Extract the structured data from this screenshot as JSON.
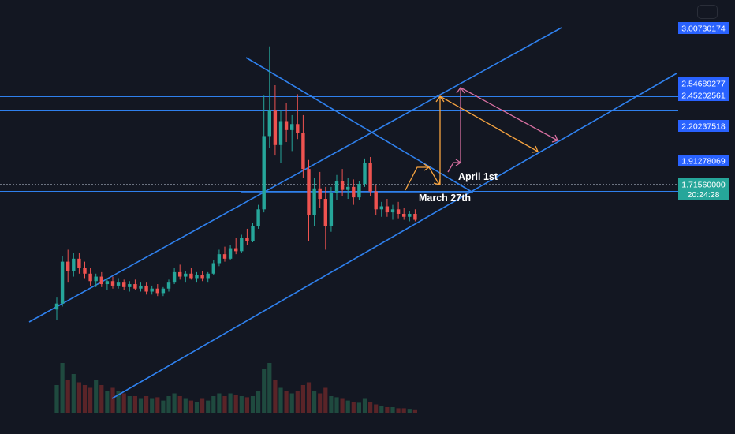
{
  "chart_data": {
    "type": "candlestick",
    "price_scale": {
      "min": 0.7,
      "max": 3.1
    },
    "x_range": [
      0,
      92
    ],
    "price_levels": [
      {
        "label": "3.00730174",
        "value": 3.00730174
      },
      {
        "label": "2.54689277",
        "value": 2.54689277
      },
      {
        "label": "2.45202561",
        "value": 2.45202561
      },
      {
        "label": "2.20237518",
        "value": 2.20237518
      },
      {
        "label": "1.91278069",
        "value": 1.91278069
      }
    ],
    "last_price": {
      "label": "1.71560000",
      "value": 1.7156,
      "countdown": "20:24:28"
    },
    "annotations": [
      {
        "text": "April 1st"
      },
      {
        "text": "March 27th"
      }
    ],
    "candles": [
      [
        1.12,
        1.2,
        1.05,
        1.16
      ],
      [
        1.16,
        1.48,
        1.14,
        1.44
      ],
      [
        1.44,
        1.52,
        1.3,
        1.38
      ],
      [
        1.38,
        1.5,
        1.34,
        1.46
      ],
      [
        1.46,
        1.5,
        1.36,
        1.4
      ],
      [
        1.4,
        1.44,
        1.33,
        1.36
      ],
      [
        1.36,
        1.4,
        1.28,
        1.31
      ],
      [
        1.31,
        1.36,
        1.27,
        1.34
      ],
      [
        1.34,
        1.37,
        1.27,
        1.29
      ],
      [
        1.29,
        1.33,
        1.25,
        1.31
      ],
      [
        1.31,
        1.34,
        1.26,
        1.28
      ],
      [
        1.28,
        1.33,
        1.26,
        1.3
      ],
      [
        1.3,
        1.32,
        1.25,
        1.27
      ],
      [
        1.27,
        1.31,
        1.24,
        1.29
      ],
      [
        1.29,
        1.32,
        1.25,
        1.26
      ],
      [
        1.26,
        1.3,
        1.24,
        1.28
      ],
      [
        1.28,
        1.3,
        1.22,
        1.24
      ],
      [
        1.24,
        1.28,
        1.22,
        1.26
      ],
      [
        1.26,
        1.29,
        1.21,
        1.23
      ],
      [
        1.23,
        1.27,
        1.21,
        1.26
      ],
      [
        1.26,
        1.32,
        1.24,
        1.3
      ],
      [
        1.3,
        1.4,
        1.29,
        1.37
      ],
      [
        1.37,
        1.42,
        1.32,
        1.34
      ],
      [
        1.34,
        1.38,
        1.3,
        1.36
      ],
      [
        1.36,
        1.4,
        1.32,
        1.33
      ],
      [
        1.33,
        1.37,
        1.3,
        1.35
      ],
      [
        1.35,
        1.38,
        1.31,
        1.33
      ],
      [
        1.33,
        1.37,
        1.3,
        1.36
      ],
      [
        1.36,
        1.45,
        1.35,
        1.43
      ],
      [
        1.43,
        1.52,
        1.41,
        1.49
      ],
      [
        1.49,
        1.54,
        1.44,
        1.46
      ],
      [
        1.46,
        1.55,
        1.45,
        1.53
      ],
      [
        1.53,
        1.6,
        1.49,
        1.51
      ],
      [
        1.51,
        1.62,
        1.5,
        1.6
      ],
      [
        1.6,
        1.66,
        1.55,
        1.58
      ],
      [
        1.58,
        1.7,
        1.57,
        1.68
      ],
      [
        1.68,
        1.82,
        1.66,
        1.79
      ],
      [
        1.79,
        2.55,
        1.77,
        2.28
      ],
      [
        2.28,
        2.88,
        2.2,
        2.45
      ],
      [
        2.45,
        2.62,
        2.15,
        2.22
      ],
      [
        2.22,
        2.45,
        2.1,
        2.38
      ],
      [
        2.38,
        2.5,
        2.24,
        2.32
      ],
      [
        2.32,
        2.42,
        2.18,
        2.36
      ],
      [
        2.36,
        2.56,
        2.26,
        2.3
      ],
      [
        2.3,
        2.42,
        2.0,
        2.06
      ],
      [
        2.06,
        2.12,
        1.58,
        1.75
      ],
      [
        1.75,
        2.0,
        1.68,
        1.93
      ],
      [
        1.93,
        2.04,
        1.8,
        1.86
      ],
      [
        1.86,
        1.94,
        1.52,
        1.68
      ],
      [
        1.68,
        1.94,
        1.64,
        1.9
      ],
      [
        1.9,
        2.02,
        1.85,
        1.98
      ],
      [
        1.98,
        2.06,
        1.88,
        1.92
      ],
      [
        1.92,
        2.0,
        1.86,
        1.94
      ],
      [
        1.94,
        1.99,
        1.82,
        1.87
      ],
      [
        1.87,
        1.98,
        1.85,
        1.96
      ],
      [
        1.96,
        2.13,
        1.94,
        2.1
      ],
      [
        2.1,
        2.14,
        1.88,
        1.91
      ],
      [
        1.91,
        1.95,
        1.75,
        1.79
      ],
      [
        1.79,
        1.84,
        1.74,
        1.81
      ],
      [
        1.81,
        1.86,
        1.74,
        1.77
      ],
      [
        1.77,
        1.82,
        1.72,
        1.79
      ],
      [
        1.79,
        1.84,
        1.73,
        1.76
      ],
      [
        1.76,
        1.8,
        1.72,
        1.74
      ],
      [
        1.74,
        1.78,
        1.71,
        1.76
      ],
      [
        1.76,
        1.79,
        1.71,
        1.72
      ]
    ],
    "volumes": [
      0.5,
      0.9,
      0.6,
      0.7,
      0.55,
      0.5,
      0.45,
      0.6,
      0.5,
      0.4,
      0.45,
      0.4,
      0.35,
      0.3,
      0.3,
      0.25,
      0.3,
      0.25,
      0.28,
      0.22,
      0.3,
      0.35,
      0.3,
      0.25,
      0.22,
      0.2,
      0.25,
      0.22,
      0.3,
      0.35,
      0.3,
      0.35,
      0.32,
      0.3,
      0.28,
      0.3,
      0.4,
      0.8,
      0.9,
      0.6,
      0.45,
      0.4,
      0.35,
      0.4,
      0.5,
      0.55,
      0.4,
      0.35,
      0.45,
      0.3,
      0.28,
      0.25,
      0.22,
      0.2,
      0.18,
      0.25,
      0.2,
      0.15,
      0.12,
      0.1,
      0.1,
      0.08,
      0.08,
      0.07,
      0.06
    ]
  }
}
